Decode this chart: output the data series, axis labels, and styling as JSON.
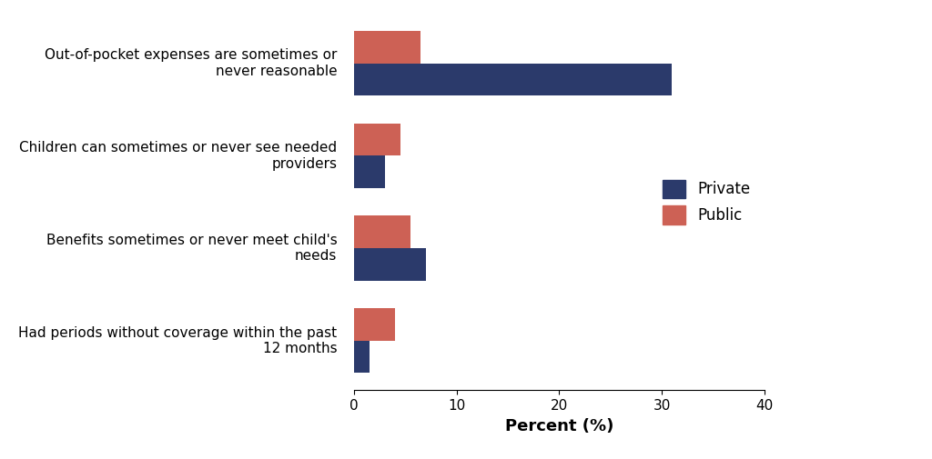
{
  "categories": [
    "Out-of-pocket expenses are sometimes or\nnever reasonable",
    "Children can sometimes or never see needed\nproviders",
    "Benefits sometimes or never meet child's\nneeds",
    "Had periods without coverage within the past\n12 months"
  ],
  "private_values": [
    31.0,
    3.0,
    7.0,
    1.5
  ],
  "public_values": [
    6.5,
    4.5,
    5.5,
    4.0
  ],
  "private_color": "#2B3A6B",
  "public_color": "#CD6155",
  "xlim": [
    0,
    40
  ],
  "xticks": [
    0,
    10,
    20,
    30,
    40
  ],
  "xlabel": "Percent (%)",
  "legend_labels": [
    "Private",
    "Public"
  ],
  "bar_height": 0.35,
  "background_color": "#ffffff"
}
